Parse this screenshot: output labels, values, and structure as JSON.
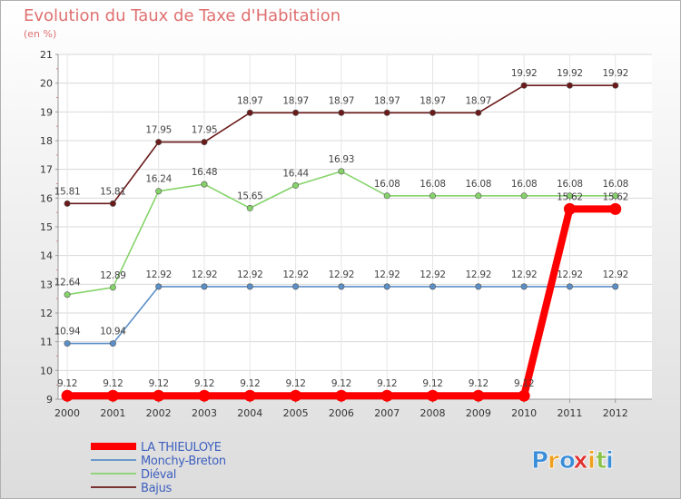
{
  "chart_data": {
    "type": "line",
    "title": "Evolution du Taux de Taxe d'Habitation",
    "subtitle": "(en %)",
    "x": [
      "2000",
      "2001",
      "2002",
      "2003",
      "2004",
      "2005",
      "2006",
      "2007",
      "2008",
      "2009",
      "2010",
      "2011",
      "2012"
    ],
    "ylim": [
      9,
      21
    ],
    "yticks": [
      "9",
      "10",
      "11",
      "12",
      "13",
      "14",
      "15",
      "16",
      "17",
      "18",
      "19",
      "20",
      "21"
    ],
    "grid": true,
    "legend_position": "bottom-left",
    "series": [
      {
        "name": "LA THIEULOYE",
        "color": "#ff0000",
        "values": [
          9.12,
          9.12,
          9.12,
          9.12,
          9.12,
          9.12,
          9.12,
          9.12,
          9.12,
          9.12,
          9.12,
          15.62,
          15.62
        ],
        "labels": [
          "9.12",
          "9.12",
          "9.12",
          "9.12",
          "9.12",
          "9.12",
          "9.12",
          "9.12",
          "9.12",
          "9.12",
          "9.12",
          "15.62",
          "15.62"
        ]
      },
      {
        "name": "Monchy-Breton",
        "color": "#5b8fc7",
        "values": [
          10.94,
          10.94,
          12.92,
          12.92,
          12.92,
          12.92,
          12.92,
          12.92,
          12.92,
          12.92,
          12.92,
          12.92,
          12.92
        ],
        "labels": [
          "10.94",
          "10.94",
          "12.92",
          "12.92",
          "12.92",
          "12.92",
          "12.92",
          "12.92",
          "12.92",
          "12.92",
          "12.92",
          "12.92",
          "12.92"
        ]
      },
      {
        "name": "Diéval",
        "color": "#86d36b",
        "values": [
          12.64,
          12.89,
          16.24,
          16.48,
          15.65,
          16.44,
          16.93,
          16.08,
          16.08,
          16.08,
          16.08,
          16.08,
          16.08
        ],
        "labels": [
          "12.64",
          "12.89",
          "16.24",
          "16.48",
          "15.65",
          "16.44",
          "16.93",
          "16.08",
          "16.08",
          "16.08",
          "16.08",
          "16.08",
          "16.08"
        ]
      },
      {
        "name": "Bajus",
        "color": "#6b1a1a",
        "values": [
          15.81,
          15.81,
          17.95,
          17.95,
          18.97,
          18.97,
          18.97,
          18.97,
          18.97,
          18.97,
          19.92,
          19.92,
          19.92
        ],
        "labels": [
          "15.81",
          "15.81",
          "17.95",
          "17.95",
          "18.97",
          "18.97",
          "18.97",
          "18.97",
          "18.97",
          "18.97",
          "19.92",
          "19.92",
          "19.92"
        ]
      }
    ],
    "brand": {
      "text": "Proxiti",
      "letters": [
        "P",
        "r",
        "o",
        "x",
        "i",
        "t",
        "i"
      ],
      "colors": [
        "#3b8ed8",
        "#f0a020",
        "#3b8ed8",
        "#e03030",
        "#f0a020",
        "#8bc34a",
        "#3b8ed8"
      ]
    }
  }
}
